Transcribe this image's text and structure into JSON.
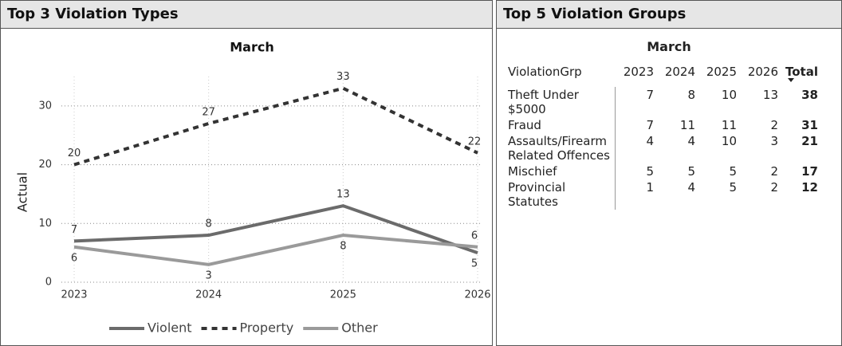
{
  "chart_panel_title": "Top 3 Violation Types",
  "chart_data": {
    "type": "line",
    "title": "March",
    "ylabel": "Actual",
    "x": [
      2023,
      2024,
      2025,
      2026
    ],
    "xlim": [
      2023,
      2026
    ],
    "xticks": [
      2023,
      2024,
      2025,
      2026
    ],
    "ylim": [
      0,
      35
    ],
    "yticks": [
      0,
      10,
      20,
      30
    ],
    "grid": true,
    "legend": "bottom",
    "series": [
      {
        "name": "Violent",
        "color": "#6b6b6b",
        "dash": false,
        "values": [
          7,
          8,
          13,
          5
        ]
      },
      {
        "name": "Property",
        "color": "#333333",
        "dash": true,
        "values": [
          20,
          27,
          33,
          22
        ]
      },
      {
        "name": "Other",
        "color": "#9a9a9a",
        "dash": false,
        "values": [
          6,
          3,
          8,
          6
        ]
      }
    ]
  },
  "table_panel": {
    "title": "Top 5 Violation Groups",
    "subtitle": "March",
    "columns": [
      "ViolationGrp",
      "2023",
      "2024",
      "2025",
      "2026",
      "Total"
    ],
    "rows": [
      [
        "Theft Under $5000",
        7,
        8,
        10,
        13,
        38
      ],
      [
        "Fraud",
        7,
        11,
        11,
        2,
        31
      ],
      [
        "Assaults/Firearm Related Offences",
        4,
        4,
        10,
        3,
        21
      ],
      [
        "Mischief",
        5,
        5,
        5,
        2,
        17
      ],
      [
        "Provincial Statutes",
        1,
        4,
        5,
        2,
        12
      ]
    ]
  }
}
